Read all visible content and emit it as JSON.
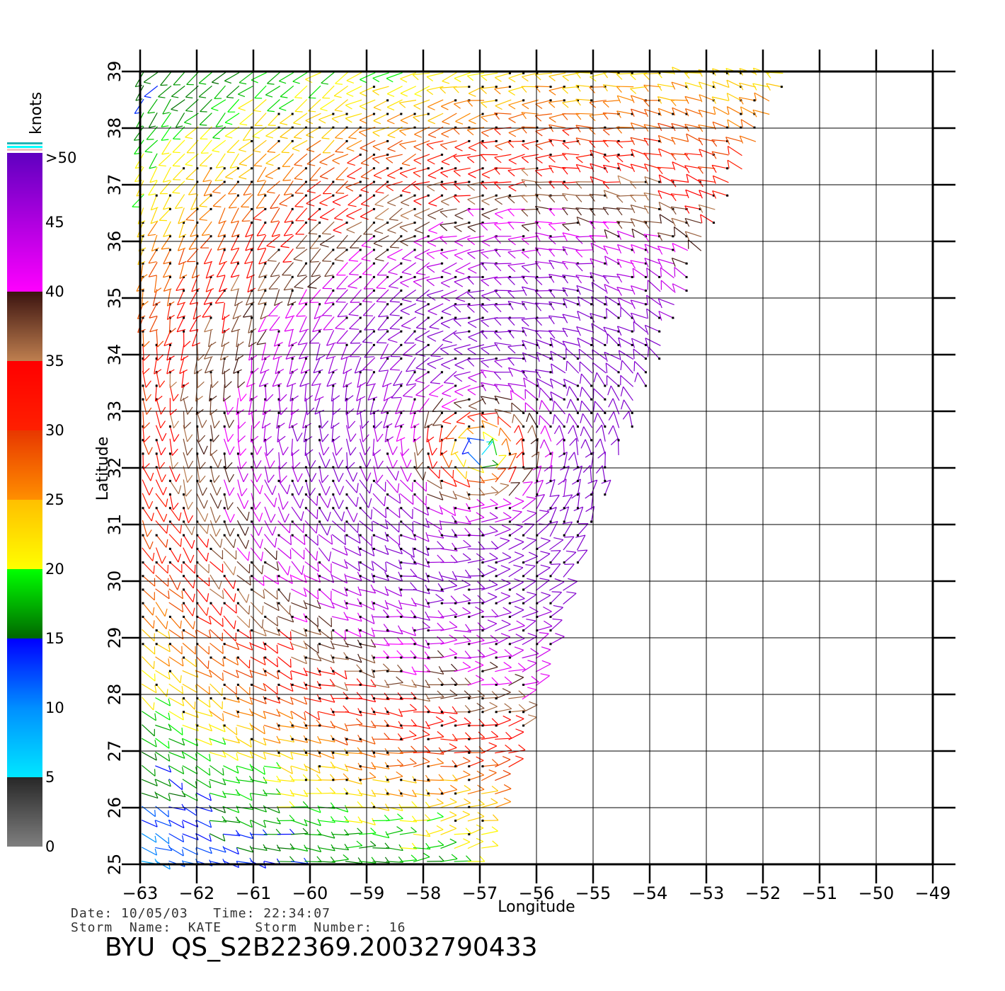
{
  "map": {
    "x_axis": {
      "label": "Longitude",
      "range": [
        -63,
        -49
      ],
      "ticks": [
        "−63",
        "−62",
        "−61",
        "−60",
        "−59",
        "−58",
        "−57",
        "−56",
        "−55",
        "−54",
        "−53",
        "−52",
        "−51",
        "−50",
        "−49"
      ]
    },
    "y_axis": {
      "label": "Latitude",
      "range": [
        25,
        39
      ],
      "ticks": [
        "25",
        "26",
        "27",
        "28",
        "29",
        "30",
        "31",
        "32",
        "33",
        "34",
        "35",
        "36",
        "37",
        "38",
        "39"
      ]
    },
    "grid": true,
    "swath_edge": [
      [
        -51.5,
        39
      ],
      [
        -53,
        36
      ],
      [
        -55,
        31
      ],
      [
        -56,
        28
      ],
      [
        -57,
        25
      ]
    ],
    "wind_field": {
      "storm_center": [
        -57,
        32.3
      ],
      "speed_units": "knots",
      "max_speed": 48
    }
  },
  "legend": {
    "title": "knots",
    "labels": [
      ">50",
      "45",
      "40",
      "35",
      "30",
      "25",
      "20",
      "15",
      "10",
      "5",
      "0"
    ],
    "bands": [
      {
        "from": 0,
        "to": 5,
        "colors": [
          "#808080",
          "#282828"
        ]
      },
      {
        "from": 5,
        "to": 10,
        "colors": [
          "#00e8ff",
          "#0090ff"
        ]
      },
      {
        "from": 10,
        "to": 15,
        "colors": [
          "#0090ff",
          "#0000ff"
        ]
      },
      {
        "from": 15,
        "to": 20,
        "colors": [
          "#006400",
          "#00ff00"
        ]
      },
      {
        "from": 20,
        "to": 25,
        "colors": [
          "#ffff00",
          "#ffc000"
        ]
      },
      {
        "from": 25,
        "to": 30,
        "colors": [
          "#ff9000",
          "#e83800"
        ]
      },
      {
        "from": 30,
        "to": 35,
        "colors": [
          "#ff2000",
          "#ff0000"
        ]
      },
      {
        "from": 35,
        "to": 40,
        "colors": [
          "#c08050",
          "#3c1410"
        ]
      },
      {
        "from": 40,
        "to": 50,
        "colors": [
          "#ff00ff",
          "#6000c0"
        ]
      }
    ]
  },
  "meta": {
    "line1": "Date: 10/05/03   Time: 22:34:07",
    "line2": "Storm  Name:  KATE    Storm  Number:  16",
    "product_id": "BYU  QS_S2B22369.20032790433"
  }
}
